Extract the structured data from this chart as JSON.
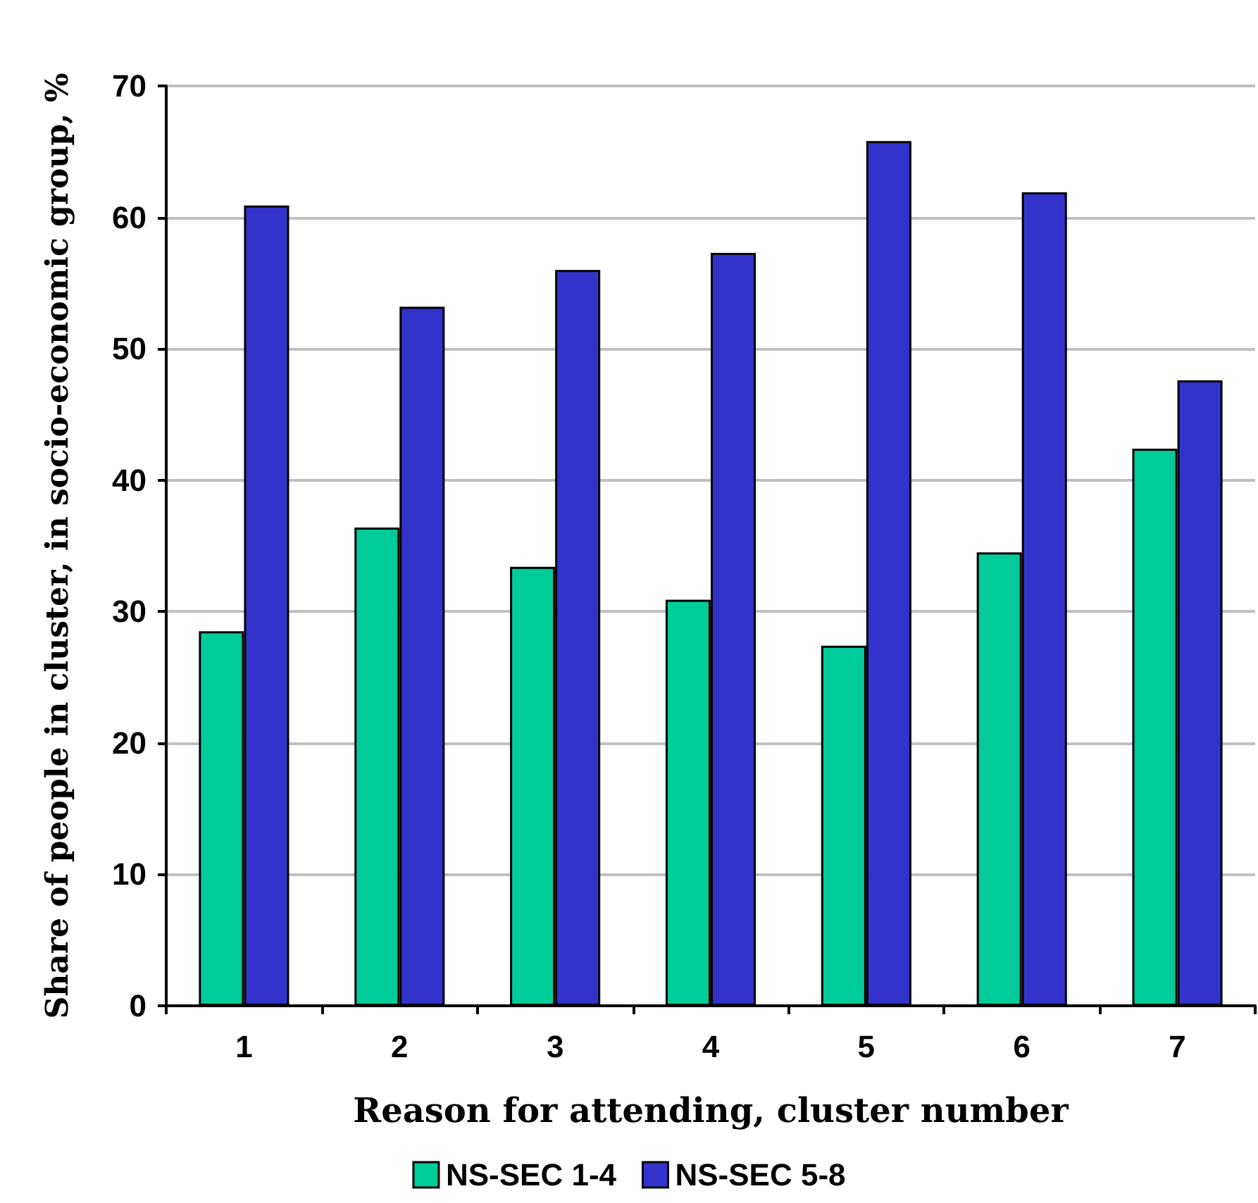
{
  "chart_data": {
    "type": "bar",
    "xlabel": "Reason for attending, cluster number",
    "ylabel": "Share of people in cluster, in socio-economic group, %",
    "categories": [
      "1",
      "2",
      "3",
      "4",
      "5",
      "6",
      "7"
    ],
    "series": [
      {
        "name": "NS-SEC 1-4",
        "color": "#00cc99",
        "values": [
          28.5,
          36.4,
          33.4,
          30.9,
          27.4,
          34.5,
          42.4
        ]
      },
      {
        "name": "NS-SEC 5-8",
        "color": "#3333cc",
        "values": [
          60.9,
          53.2,
          56.0,
          57.3,
          65.8,
          61.9,
          47.6
        ]
      }
    ],
    "ylim": [
      0,
      70
    ],
    "yticks": [
      0,
      10,
      20,
      30,
      40,
      50,
      60,
      70
    ],
    "grid": "y",
    "legend": "bottom"
  }
}
